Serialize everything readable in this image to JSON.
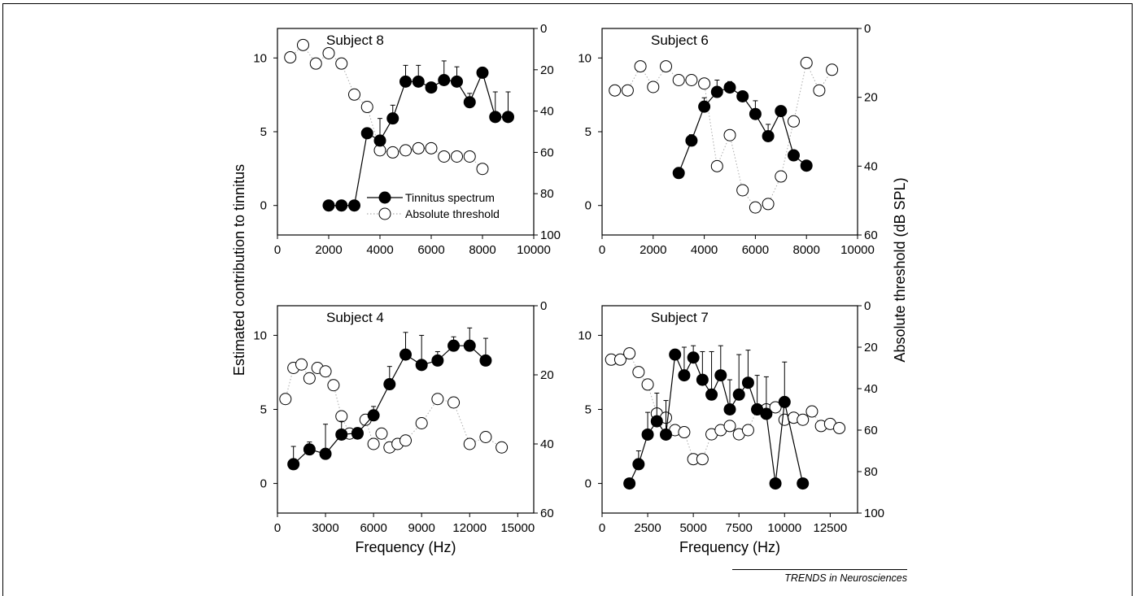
{
  "figure": {
    "ylabel_left": "Estimated contribution to tinnitus",
    "ylabel_right": "Absolute threshold (dB SPL)",
    "credit": "TRENDS in Neurosciences",
    "legend": {
      "tinnitus_label": "Tinnitus spectrum",
      "threshold_label": "Absolute threshold"
    }
  },
  "chart_data": [
    {
      "type": "line",
      "title": "Subject 8",
      "xlabel": "",
      "xlim": [
        0,
        10000
      ],
      "xticks": [
        0,
        2000,
        4000,
        6000,
        8000,
        10000
      ],
      "ylim": [
        -2,
        12
      ],
      "yticks": [
        0,
        5,
        10
      ],
      "y2lim": [
        100,
        0
      ],
      "y2ticks": [
        0,
        20,
        40,
        60,
        80,
        100
      ],
      "legend_position": "lower-right",
      "series": [
        {
          "name": "Tinnitus spectrum",
          "x": [
            2000,
            2500,
            3000,
            3500,
            4000,
            4500,
            5000,
            5500,
            6000,
            6500,
            7000,
            7500,
            8000,
            8500,
            9000
          ],
          "y": [
            0,
            0,
            0,
            4.9,
            4.4,
            5.9,
            8.4,
            8.4,
            8.0,
            8.5,
            8.4,
            7.0,
            9.0,
            6.0,
            6.0
          ],
          "err": [
            0,
            0,
            0,
            0,
            1.5,
            0.9,
            1.1,
            1.1,
            0,
            1.3,
            1.0,
            0.6,
            0,
            1.7,
            1.7
          ]
        },
        {
          "name": "Absolute threshold",
          "x": [
            500,
            1000,
            1500,
            2000,
            2500,
            3000,
            3500,
            4000,
            4500,
            5000,
            5500,
            6000,
            6500,
            7000,
            7500,
            8000
          ],
          "y": [
            14,
            8,
            17,
            12,
            17,
            32,
            38,
            59,
            60,
            59,
            58,
            58,
            62,
            62,
            62,
            68
          ]
        }
      ]
    },
    {
      "type": "line",
      "title": "Subject 6",
      "xlabel": "",
      "xlim": [
        0,
        10000
      ],
      "xticks": [
        0,
        2000,
        4000,
        6000,
        8000,
        10000
      ],
      "ylim": [
        -2,
        12
      ],
      "yticks": [
        0,
        5,
        10
      ],
      "y2lim": [
        60,
        0
      ],
      "y2ticks": [
        0,
        20,
        40,
        60
      ],
      "series": [
        {
          "name": "Tinnitus spectrum",
          "x": [
            3000,
            3500,
            4000,
            4500,
            5000,
            5500,
            6000,
            6500,
            7000,
            7500,
            8000
          ],
          "y": [
            2.2,
            4.4,
            6.7,
            7.7,
            8.0,
            7.4,
            6.2,
            4.7,
            6.4,
            3.4,
            2.7
          ],
          "err": [
            0,
            0.4,
            0.6,
            0.8,
            0.4,
            0,
            0.9,
            0.8,
            0.3,
            0.3,
            0.3
          ]
        },
        {
          "name": "Absolute threshold",
          "x": [
            500,
            1000,
            1500,
            2000,
            2500,
            3000,
            3500,
            4000,
            4500,
            5000,
            5500,
            6000,
            6500,
            7000,
            7500,
            8000,
            8500,
            9000
          ],
          "y": [
            18,
            18,
            11,
            17,
            11,
            15,
            15,
            16,
            40,
            31,
            47,
            52,
            51,
            43,
            27,
            10,
            18,
            12
          ]
        }
      ]
    },
    {
      "type": "line",
      "title": "Subject 4",
      "xlabel": "Frequency (Hz)",
      "xlim": [
        0,
        16000
      ],
      "xticks": [
        0,
        3000,
        6000,
        9000,
        12000,
        15000
      ],
      "ylim": [
        -2,
        12
      ],
      "yticks": [
        0,
        5,
        10
      ],
      "y2lim": [
        60,
        0
      ],
      "y2ticks": [
        0,
        20,
        40,
        60
      ],
      "series": [
        {
          "name": "Tinnitus spectrum",
          "x": [
            1000,
            2000,
            3000,
            4000,
            5000,
            6000,
            7000,
            8000,
            9000,
            10000,
            11000,
            12000,
            13000
          ],
          "y": [
            1.3,
            2.3,
            2.0,
            3.3,
            3.4,
            4.6,
            6.7,
            8.7,
            8.0,
            8.3,
            9.3,
            9.3,
            8.3
          ],
          "err": [
            1.2,
            0.5,
            2.0,
            0.9,
            0,
            0.6,
            1.2,
            1.5,
            2.0,
            0.6,
            0.6,
            1.2,
            1.5
          ]
        },
        {
          "name": "Absolute threshold",
          "x": [
            500,
            1000,
            1500,
            2000,
            2500,
            3000,
            3500,
            4000,
            4500,
            5000,
            5500,
            6000,
            6500,
            7000,
            7500,
            8000,
            9000,
            10000,
            11000,
            12000,
            13000,
            14000
          ],
          "y": [
            27,
            18,
            17,
            21,
            18,
            19,
            23,
            32,
            37,
            37,
            33,
            40,
            37,
            41,
            40,
            39,
            34,
            27,
            28,
            40,
            38,
            41
          ]
        }
      ]
    },
    {
      "type": "line",
      "title": "Subject 7",
      "xlabel": "Frequency (Hz)",
      "xlim": [
        0,
        14000
      ],
      "xticks": [
        0,
        2500,
        5000,
        7500,
        10000,
        12500
      ],
      "ylim": [
        -2,
        12
      ],
      "yticks": [
        0,
        5,
        10
      ],
      "y2lim": [
        100,
        0
      ],
      "y2ticks": [
        0,
        20,
        40,
        60,
        80,
        100
      ],
      "series": [
        {
          "name": "Tinnitus spectrum",
          "x": [
            1500,
            2000,
            2500,
            3000,
            3500,
            4000,
            4500,
            5000,
            5500,
            6000,
            6500,
            7000,
            7500,
            8000,
            8500,
            9000,
            9500,
            10000,
            11000
          ],
          "y": [
            0,
            1.3,
            3.3,
            4.2,
            3.3,
            8.7,
            7.3,
            8.5,
            7.0,
            6.0,
            7.3,
            5.0,
            6.0,
            6.8,
            5.0,
            4.7,
            0,
            5.5,
            0
          ],
          "err": [
            0,
            0.9,
            1.5,
            1.9,
            2.3,
            0,
            1.9,
            0.8,
            1.9,
            2.9,
            2.0,
            2.0,
            2.7,
            2.2,
            2.3,
            2.5,
            0,
            2.7,
            0
          ]
        },
        {
          "name": "Absolute threshold",
          "x": [
            500,
            1000,
            1500,
            2000,
            2500,
            3000,
            3500,
            4000,
            4500,
            5000,
            5500,
            6000,
            6500,
            7000,
            7500,
            8000,
            8500,
            9000,
            9500,
            10000,
            10500,
            11000,
            11500,
            12000,
            12500,
            13000
          ],
          "y": [
            26,
            26,
            23,
            32,
            38,
            52,
            54,
            60,
            61,
            74,
            74,
            62,
            60,
            58,
            62,
            60,
            50,
            50,
            49,
            55,
            54,
            55,
            51,
            58,
            57,
            59
          ]
        }
      ]
    }
  ]
}
